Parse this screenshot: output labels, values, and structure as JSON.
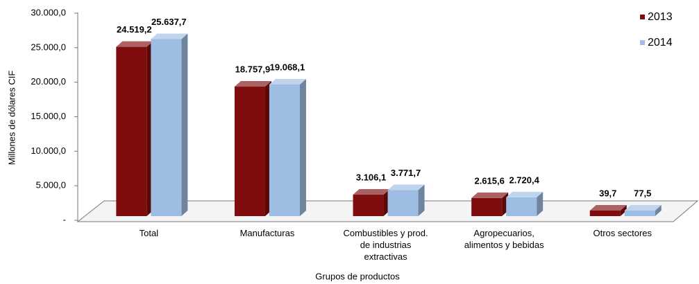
{
  "chart_data": {
    "type": "bar3d",
    "y_axis_label": "Millones de dólares CIF",
    "x_axis_label": "Grupos de productos",
    "categories": [
      "Total",
      "Manufacturas",
      "Combustibles y prod. de industrias extractivas",
      "Agropecuarios, alimentos y bebidas",
      "Otros sectores"
    ],
    "series": [
      {
        "name": "2013",
        "color": "#800d0d",
        "label_color": "#8b1a1a",
        "values": [
          24519.2,
          18757.9,
          3106.1,
          2615.6,
          39.7
        ],
        "value_labels": [
          "24.519,2",
          "18.757,9",
          "3.106,1",
          "2.615,6",
          "39,7"
        ]
      },
      {
        "name": "2014",
        "color": "#9ebde2",
        "label_color": "#1b2a4a",
        "values": [
          25637.7,
          19068.1,
          3771.7,
          2720.4,
          77.5
        ],
        "value_labels": [
          "25.637,7",
          "19.068,1",
          "3.771,7",
          "2.720,4",
          "77,5"
        ]
      }
    ],
    "ylim": [
      0,
      30000
    ],
    "yticks": [
      {
        "value": 0,
        "label": "-"
      },
      {
        "value": 5000,
        "label": "5.000,0"
      },
      {
        "value": 10000,
        "label": "10.000,0"
      },
      {
        "value": 15000,
        "label": "15.000,0"
      },
      {
        "value": 20000,
        "label": "20.000,0"
      },
      {
        "value": 25000,
        "label": "25.000,0"
      },
      {
        "value": 30000,
        "label": "30.000,0"
      }
    ],
    "legend": "top-right"
  }
}
